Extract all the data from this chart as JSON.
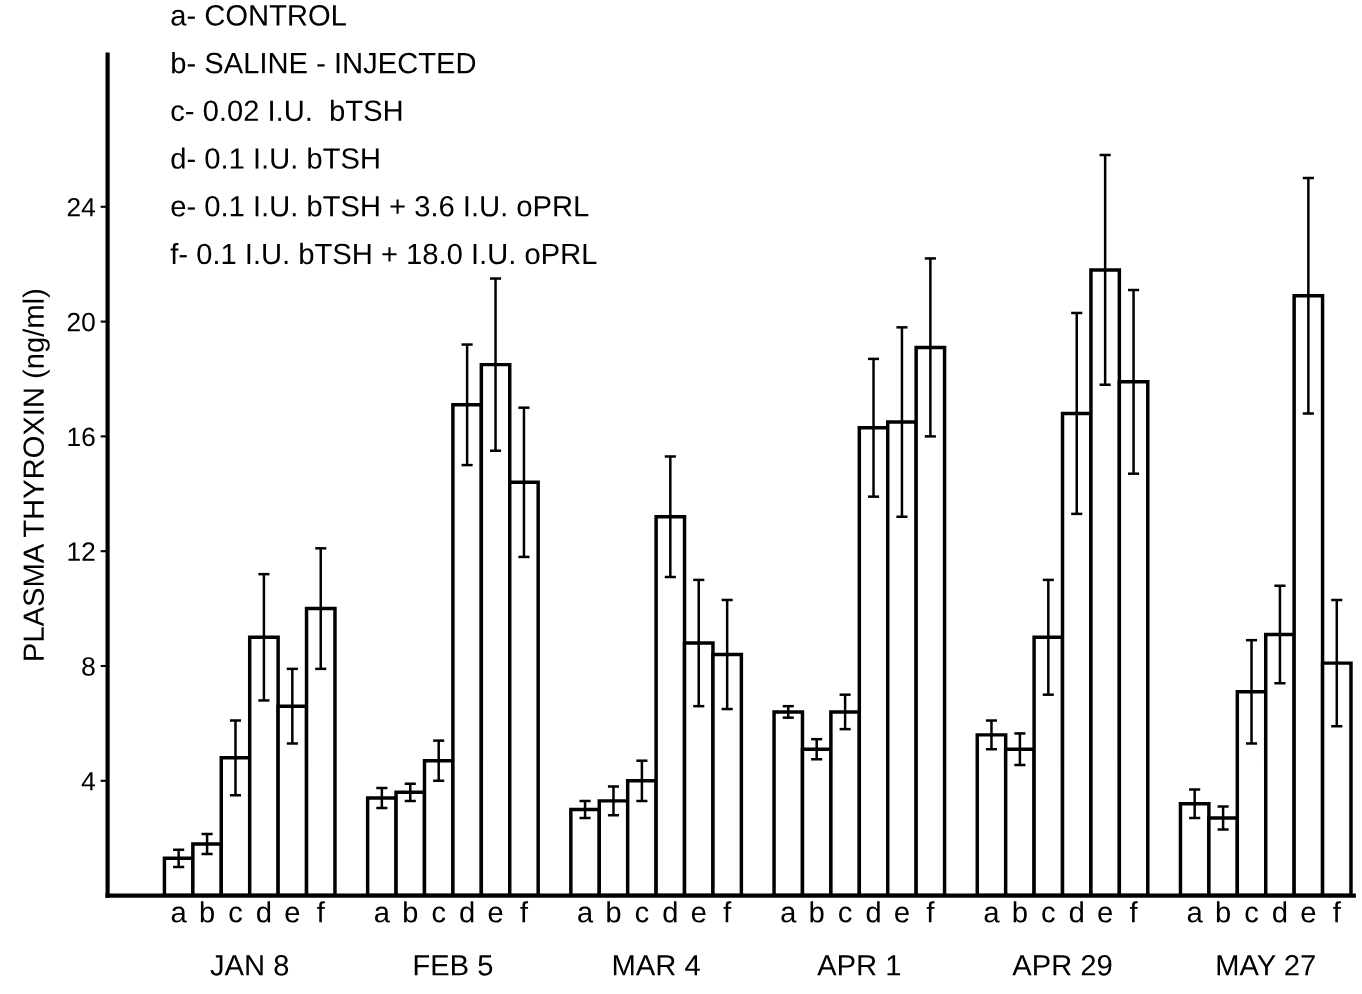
{
  "chart_data": {
    "type": "bar",
    "ylabel": "PLASMA THYROXIN (ng/ml)",
    "categories": [
      "a",
      "b",
      "c",
      "d",
      "e",
      "f",
      "a",
      "b",
      "c",
      "d",
      "e",
      "f",
      "a",
      "b",
      "c",
      "d",
      "e",
      "f",
      "a",
      "b",
      "c",
      "d",
      "e",
      "f",
      "a",
      "b",
      "c",
      "d",
      "e",
      "f",
      "a",
      "b",
      "c",
      "d",
      "e",
      "f"
    ],
    "values": [
      1.3,
      1.8,
      4.8,
      9.0,
      6.6,
      10.0,
      3.4,
      3.6,
      4.7,
      17.1,
      18.5,
      14.4,
      3.0,
      3.3,
      4.0,
      13.2,
      8.8,
      8.4,
      6.4,
      5.1,
      6.4,
      16.3,
      16.5,
      19.1,
      5.6,
      5.1,
      9.0,
      16.8,
      21.8,
      17.9,
      3.2,
      2.7,
      7.1,
      9.1,
      20.9,
      8.1
    ],
    "errors": [
      0.3,
      0.35,
      1.3,
      2.2,
      1.3,
      2.1,
      0.35,
      0.3,
      0.7,
      2.1,
      3.0,
      2.6,
      0.3,
      0.5,
      0.7,
      2.1,
      2.2,
      1.9,
      0.2,
      0.35,
      0.6,
      2.4,
      3.3,
      3.1,
      0.5,
      0.55,
      2.0,
      3.5,
      4.0,
      3.2,
      0.5,
      0.4,
      1.8,
      1.7,
      4.1,
      2.2
    ],
    "color": "#ffffff",
    "ylim": [
      0,
      29.3
    ],
    "yticks": [
      4,
      8,
      12,
      16,
      20,
      24
    ],
    "annotations": [
      "a- CONTROL",
      "b- SALINE - INJECTED",
      "c- 0.02 I.U.  bTSH",
      "d- 0.1 I.U. bTSH",
      "e- 0.1 I.U. bTSH + 3.6 I.U. oPRL",
      "f- 0.1 I.U. bTSH + 18.0 I.U. oPRL",
      "JAN 8",
      "FEB 5",
      "MAR 4",
      "APR 1",
      "APR 29",
      "MAY 27"
    ]
  }
}
